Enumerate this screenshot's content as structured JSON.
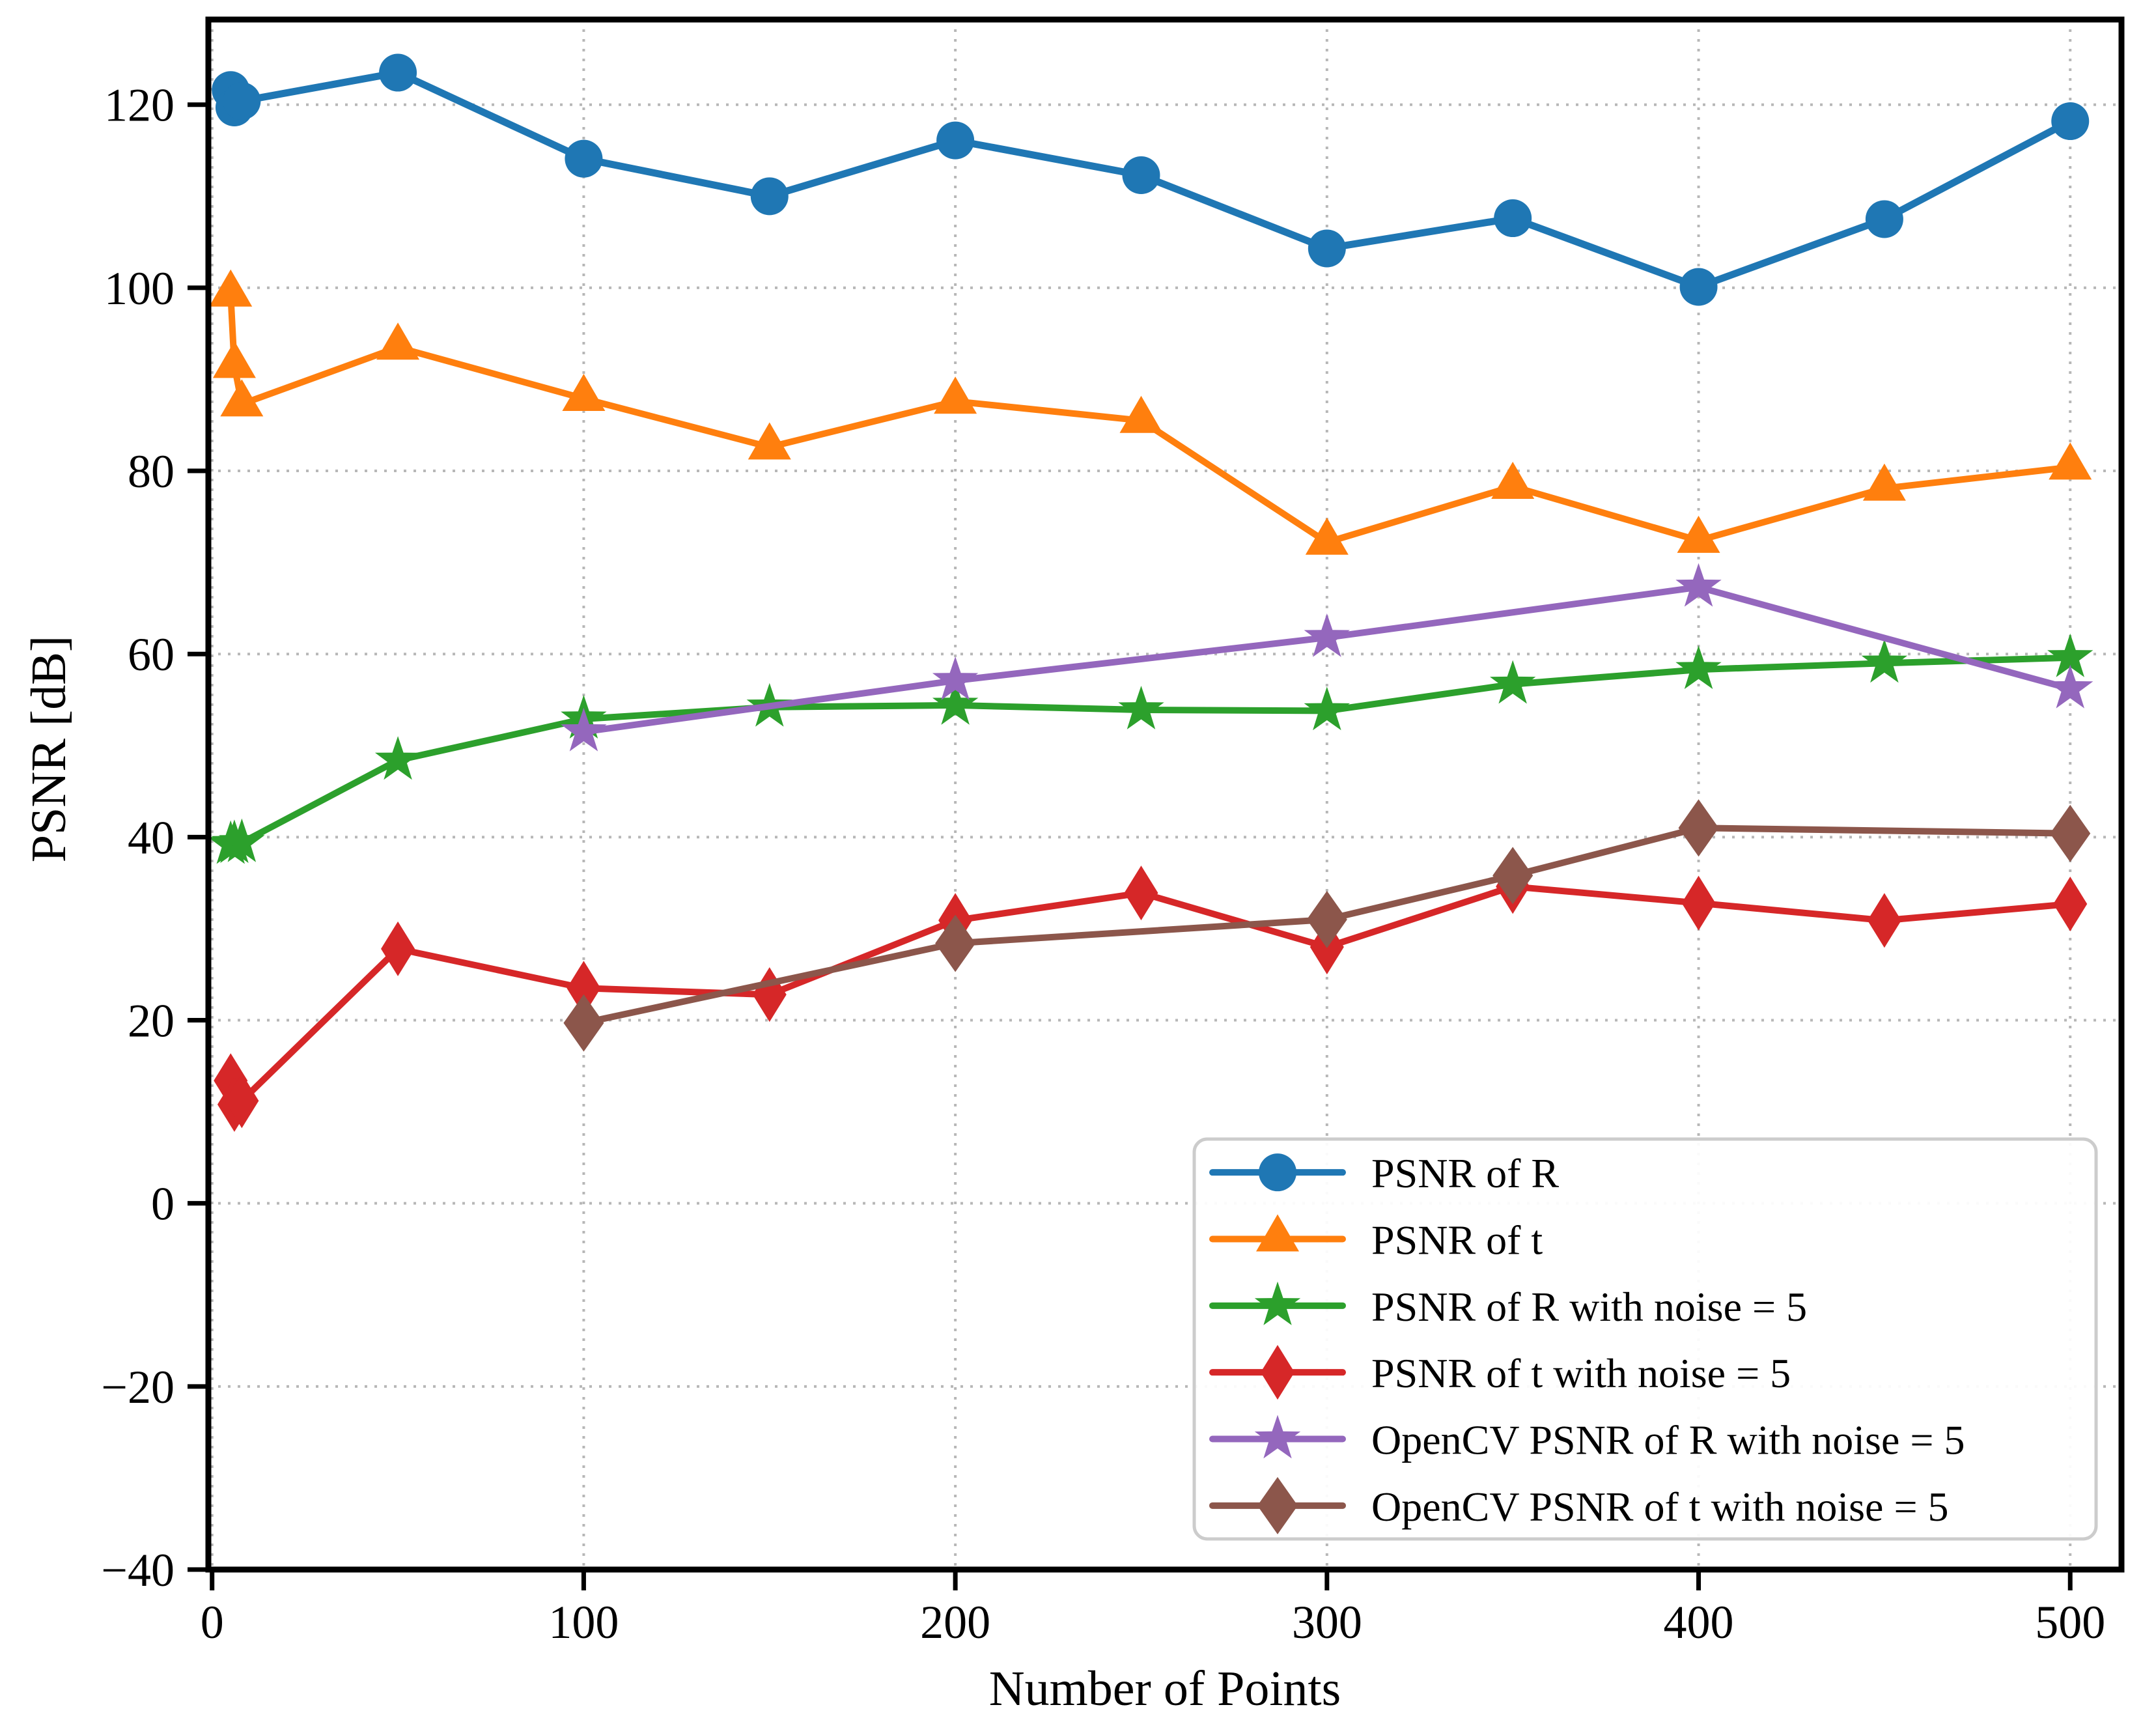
{
  "chart_data": {
    "type": "line",
    "title": "",
    "xlabel": "Number of Points",
    "ylabel": "PSNR [dB]",
    "xlim": [
      -1,
      513.8
    ],
    "ylim": [
      -40,
      129.3
    ],
    "x_ticks": [
      0,
      100,
      200,
      300,
      400,
      500
    ],
    "x_tick_labels": [
      "0",
      "100",
      "200",
      "300",
      "400",
      "500"
    ],
    "y_ticks": [
      -40,
      -20,
      0,
      20,
      40,
      60,
      80,
      100,
      120
    ],
    "y_tick_labels": [
      "−40",
      "−20",
      "0",
      "20",
      "40",
      "60",
      "80",
      "100",
      "120"
    ],
    "grid": "dotted",
    "grid_color": "#b0b0b0",
    "legend_position": "lower right",
    "legend_border_color": "#cccccc",
    "series": [
      {
        "name": "PSNR of R",
        "color": "#1f77b4",
        "marker": "circle",
        "x": [
          5,
          6,
          8,
          50,
          100,
          150,
          200,
          250,
          300,
          350,
          400,
          450,
          500
        ],
        "y": [
          121.6,
          119.7,
          120.4,
          123.5,
          114.1,
          110.0,
          116.1,
          112.3,
          104.3,
          107.6,
          100.1,
          107.5,
          118.2
        ]
      },
      {
        "name": "PSNR of t",
        "color": "#ff7f0e",
        "marker": "triangle",
        "x": [
          5,
          6,
          8,
          50,
          100,
          150,
          200,
          250,
          300,
          350,
          400,
          450,
          500
        ],
        "y": [
          99.3,
          91.5,
          87.3,
          93.5,
          87.9,
          82.6,
          87.6,
          85.5,
          72.2,
          78.3,
          72.4,
          78.1,
          80.4
        ]
      },
      {
        "name": "PSNR of R with noise = 5",
        "color": "#2ca02c",
        "marker": "star",
        "x": [
          5,
          6,
          8,
          50,
          100,
          150,
          200,
          250,
          300,
          350,
          400,
          450,
          500
        ],
        "y": [
          39.2,
          39.3,
          39.4,
          48.4,
          52.9,
          54.2,
          54.4,
          53.9,
          53.8,
          56.7,
          58.3,
          59.0,
          59.6
        ]
      },
      {
        "name": "PSNR of t with noise = 5",
        "color": "#d62728",
        "marker": "thin-diamond",
        "x": [
          5,
          6,
          8,
          50,
          100,
          150,
          200,
          250,
          300,
          350,
          400,
          450,
          500
        ],
        "y": [
          13.4,
          10.8,
          11.2,
          27.8,
          23.5,
          22.8,
          30.9,
          33.9,
          28.0,
          34.6,
          32.8,
          30.9,
          32.7
        ]
      },
      {
        "name": "OpenCV PSNR of R with noise = 5",
        "color": "#9467bd",
        "marker": "star",
        "x": [
          100,
          200,
          300,
          400,
          500
        ],
        "y": [
          51.5,
          57.1,
          61.8,
          67.3,
          56.2
        ]
      },
      {
        "name": "OpenCV PSNR of t with noise = 5",
        "color": "#8c564b",
        "marker": "diamond",
        "x": [
          100,
          200,
          300,
          350,
          400,
          500
        ],
        "y": [
          19.7,
          28.4,
          31.0,
          35.8,
          41.0,
          40.4
        ]
      }
    ]
  }
}
